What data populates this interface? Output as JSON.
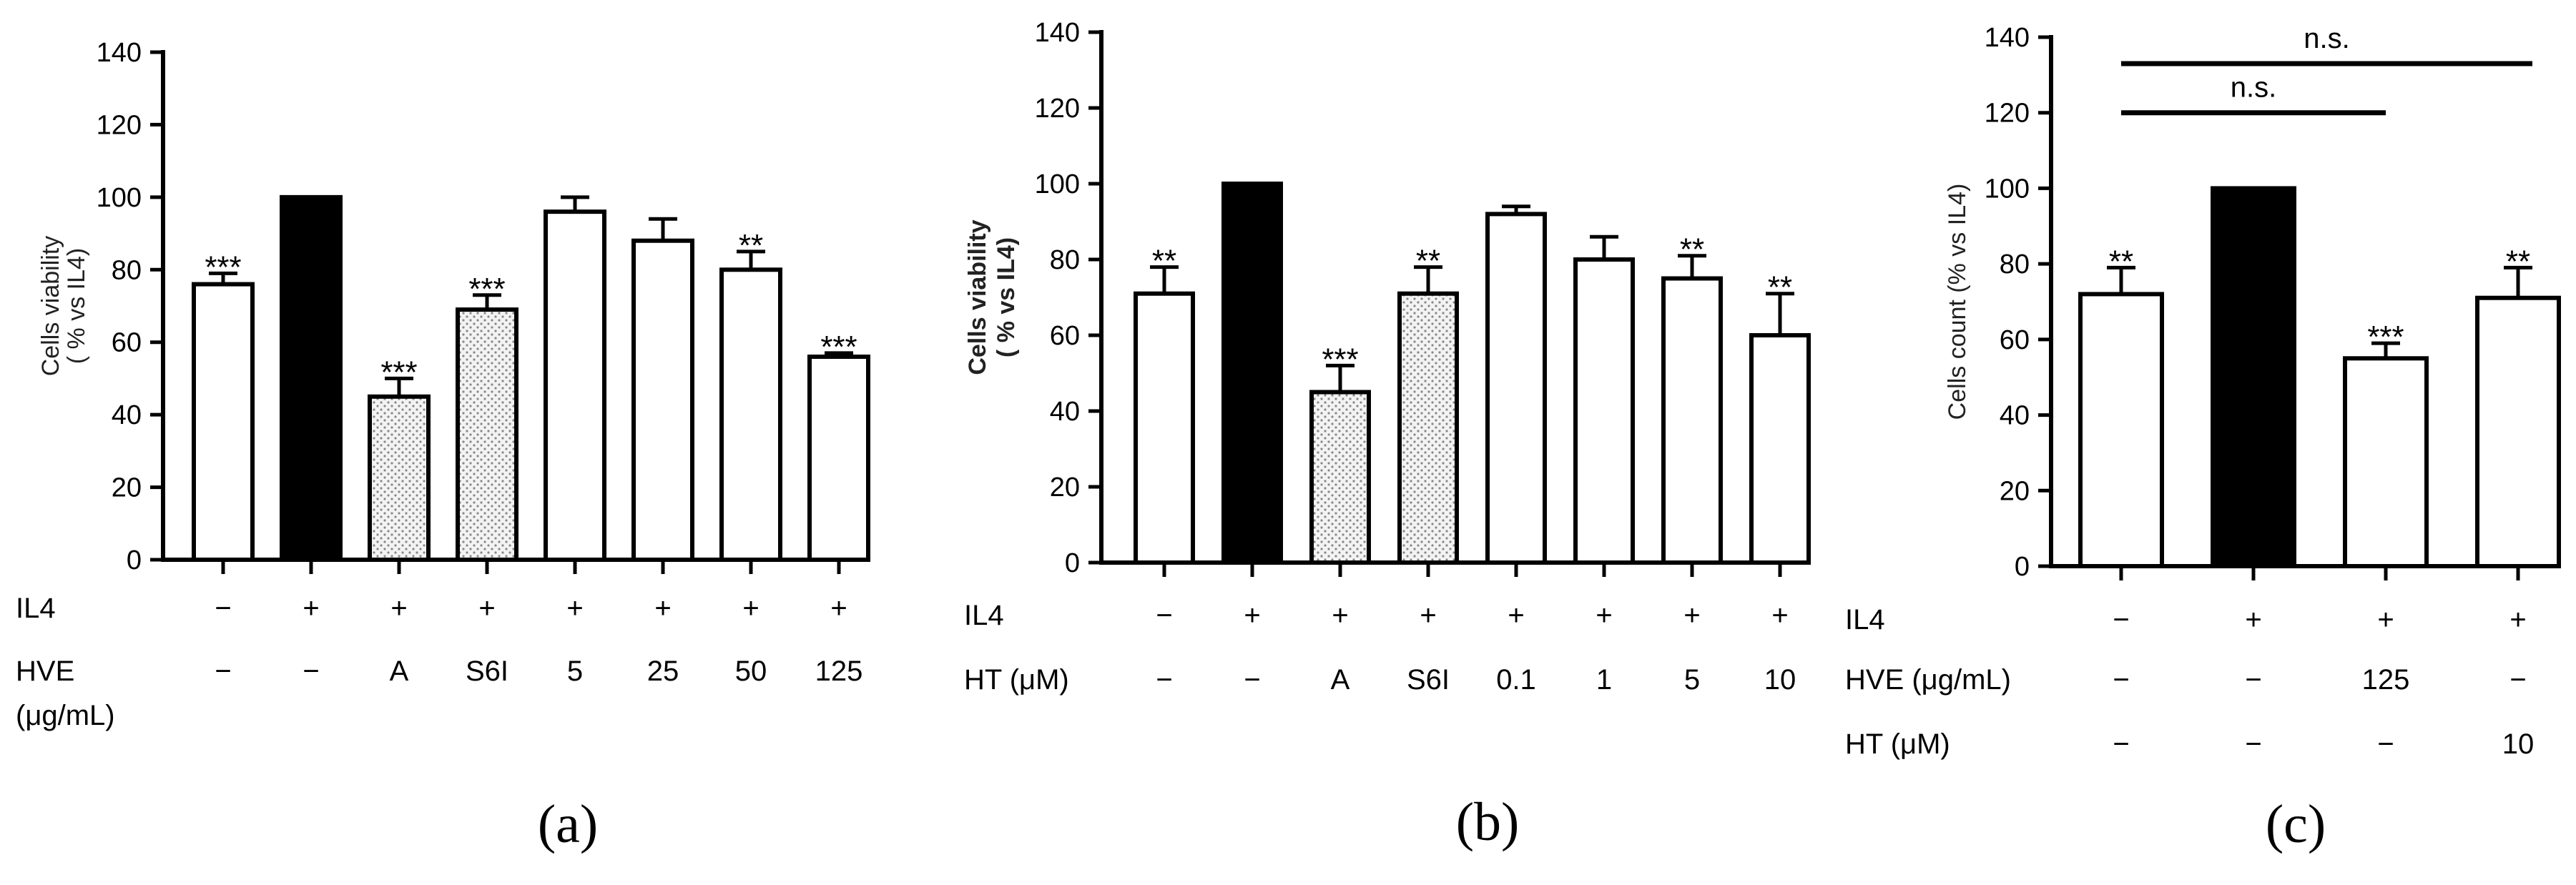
{
  "colors": {
    "bar_white": "#ffffff",
    "bar_black": "#000000",
    "dot_fill": "#f3f3f3",
    "dot": "#888888",
    "stroke": "#000000"
  },
  "chart_data": [
    {
      "type": "bar",
      "panel": "(a)",
      "ylabel_line1": "Cells viability",
      "ylabel_line2": "( % vs IL4)",
      "ylim": [
        0,
        140
      ],
      "yticks": [
        "0",
        "20",
        "40",
        "60",
        "80",
        "100",
        "120",
        "140"
      ],
      "values": [
        76,
        100,
        45,
        69,
        96,
        88,
        80,
        56
      ],
      "errors": [
        3,
        0,
        5,
        4,
        4,
        6,
        5,
        1
      ],
      "fills": [
        "white",
        "black",
        "dots",
        "dots",
        "white",
        "white",
        "white",
        "white"
      ],
      "stars": [
        "***",
        "",
        "***",
        "***",
        "",
        "",
        "**",
        "***"
      ],
      "conditions": [
        {
          "name": "IL4",
          "values": [
            "−",
            "+",
            "+",
            "+",
            "+",
            "+",
            "+",
            "+"
          ]
        },
        {
          "name": "HVE",
          "name2": "(μg/mL)",
          "values": [
            "−",
            "−",
            "A",
            "S6I",
            "5",
            "25",
            "50",
            "125"
          ]
        }
      ]
    },
    {
      "type": "bar",
      "panel": "(b)",
      "ylabel_line1": "Cells viability",
      "ylabel_line2": "( % vs IL4)",
      "ylim": [
        0,
        140
      ],
      "yticks": [
        "0",
        "20",
        "40",
        "60",
        "80",
        "100",
        "120",
        "140"
      ],
      "values": [
        71,
        100,
        45,
        71,
        92,
        80,
        75,
        60
      ],
      "errors": [
        7,
        0,
        7,
        7,
        2,
        6,
        6,
        11
      ],
      "fills": [
        "white",
        "black",
        "dots",
        "dots",
        "white",
        "white",
        "white",
        "white"
      ],
      "stars": [
        "**",
        "",
        "***",
        "**",
        "",
        "",
        "**",
        "**"
      ],
      "conditions": [
        {
          "name": "IL4",
          "values": [
            "−",
            "+",
            "+",
            "+",
            "+",
            "+",
            "+",
            "+"
          ]
        },
        {
          "name": "HT (μM)",
          "values": [
            "−",
            "−",
            "A",
            "S6I",
            "0.1",
            "1",
            "5",
            "10"
          ]
        }
      ]
    },
    {
      "type": "bar",
      "panel": "(c)",
      "ylabel_line1": "Cells count (% vs IL4)",
      "ylim": [
        0,
        140
      ],
      "yticks": [
        "0",
        "20",
        "40",
        "60",
        "80",
        "100",
        "120",
        "140"
      ],
      "values": [
        72,
        100,
        55,
        71
      ],
      "errors": [
        7,
        0,
        4,
        8
      ],
      "fills": [
        "white",
        "black",
        "white",
        "white"
      ],
      "stars": [
        "**",
        "",
        "***",
        "**"
      ],
      "conditions": [
        {
          "name": "IL4",
          "values": [
            "−",
            "+",
            "+",
            "+"
          ]
        },
        {
          "name": "HVE (μg/mL)",
          "values": [
            "−",
            "−",
            "125",
            "−"
          ]
        },
        {
          "name": "HT (μM)",
          "values": [
            "−",
            "−",
            "−",
            "10"
          ]
        }
      ],
      "brackets": [
        {
          "from": 0,
          "to": 2,
          "y": 120,
          "label": "n.s."
        },
        {
          "from": 0,
          "to": 3,
          "y": 133,
          "label": "n.s."
        }
      ]
    }
  ]
}
